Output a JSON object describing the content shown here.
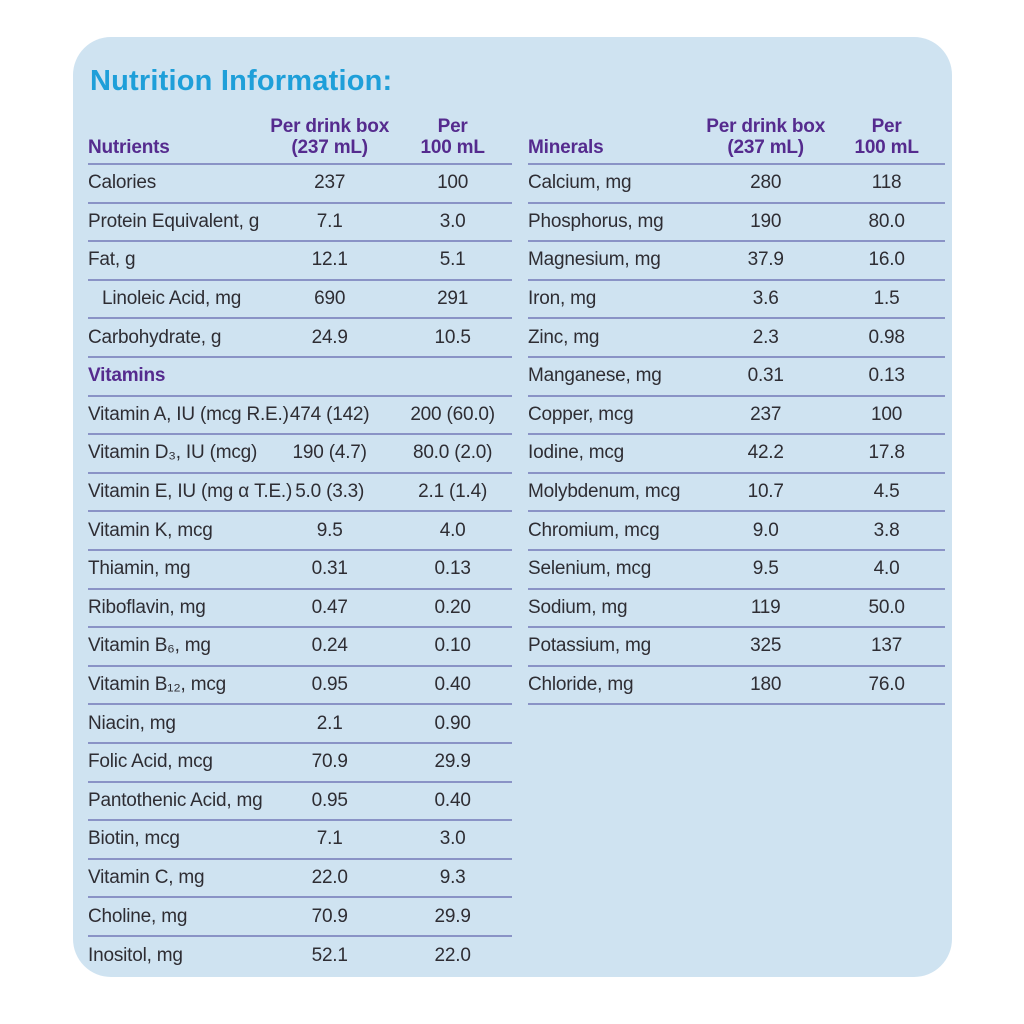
{
  "title": "Nutrition Information:",
  "columns": {
    "per_box_line1": "Per drink box",
    "per_box_line2": "(237 mL)",
    "per_100_line1": "Per",
    "per_100_line2": "100 mL"
  },
  "colors": {
    "card_bg": "#cfe3f1",
    "title": "#1e9fd9",
    "header_purple": "#552b8e",
    "divider": "#8a93c6",
    "text": "#2e2d33"
  },
  "tables": [
    {
      "name": "nutrients",
      "header_label": "Nutrients",
      "bottom_border_on_last_row": false,
      "rows": [
        {
          "label": "Calories",
          "box": "237",
          "per100": "100"
        },
        {
          "label": "Protein Equivalent, g",
          "box": "7.1",
          "per100": "3.0"
        },
        {
          "label": "Fat, g",
          "box": "12.1",
          "per100": "5.1"
        },
        {
          "label": "Linoleic Acid, mg",
          "indent": true,
          "box": "690",
          "per100": "291"
        },
        {
          "label": "Carbohydrate, g",
          "box": "24.9",
          "per100": "10.5"
        },
        {
          "section": "Vitamins"
        },
        {
          "label": "Vitamin A, IU (mcg R.E.)",
          "box": "474 (142)",
          "per100": "200 (60.0)"
        },
        {
          "label": "Vitamin D₃, IU (mcg)",
          "box": "190 (4.7)",
          "per100": "80.0 (2.0)"
        },
        {
          "label": "Vitamin E, IU (mg α T.E.)",
          "box": "5.0 (3.3)",
          "per100": "2.1 (1.4)"
        },
        {
          "label": "Vitamin K, mcg",
          "box": "9.5",
          "per100": "4.0"
        },
        {
          "label": "Thiamin, mg",
          "box": "0.31",
          "per100": "0.13"
        },
        {
          "label": "Riboflavin, mg",
          "box": "0.47",
          "per100": "0.20"
        },
        {
          "label": "Vitamin B₆, mg",
          "box": "0.24",
          "per100": "0.10"
        },
        {
          "label": "Vitamin B₁₂, mcg",
          "box": "0.95",
          "per100": "0.40"
        },
        {
          "label": "Niacin, mg",
          "box": "2.1",
          "per100": "0.90"
        },
        {
          "label": "Folic Acid, mcg",
          "box": "70.9",
          "per100": "29.9"
        },
        {
          "label": "Pantothenic Acid, mg",
          "box": "0.95",
          "per100": "0.40"
        },
        {
          "label": "Biotin, mcg",
          "box": "7.1",
          "per100": "3.0"
        },
        {
          "label": "Vitamin C, mg",
          "box": "22.0",
          "per100": "9.3"
        },
        {
          "label": "Choline, mg",
          "box": "70.9",
          "per100": "29.9"
        },
        {
          "label": "Inositol, mg",
          "box": "52.1",
          "per100": "22.0"
        }
      ]
    },
    {
      "name": "minerals",
      "header_label": "Minerals",
      "bottom_border_on_last_row": true,
      "rows": [
        {
          "label": "Calcium, mg",
          "box": "280",
          "per100": "118"
        },
        {
          "label": "Phosphorus, mg",
          "box": "190",
          "per100": "80.0"
        },
        {
          "label": "Magnesium, mg",
          "box": "37.9",
          "per100": "16.0"
        },
        {
          "label": "Iron, mg",
          "box": "3.6",
          "per100": "1.5"
        },
        {
          "label": "Zinc, mg",
          "box": "2.3",
          "per100": "0.98"
        },
        {
          "label": "Manganese, mg",
          "box": "0.31",
          "per100": "0.13"
        },
        {
          "label": "Copper, mcg",
          "box": "237",
          "per100": "100"
        },
        {
          "label": "Iodine, mcg",
          "box": "42.2",
          "per100": "17.8"
        },
        {
          "label": "Molybdenum, mcg",
          "box": "10.7",
          "per100": "4.5"
        },
        {
          "label": "Chromium, mcg",
          "box": "9.0",
          "per100": "3.8"
        },
        {
          "label": "Selenium, mcg",
          "box": "9.5",
          "per100": "4.0"
        },
        {
          "label": "Sodium, mg",
          "box": "119",
          "per100": "50.0"
        },
        {
          "label": "Potassium, mg",
          "box": "325",
          "per100": "137"
        },
        {
          "label": "Chloride, mg",
          "box": "180",
          "per100": "76.0"
        }
      ]
    }
  ]
}
